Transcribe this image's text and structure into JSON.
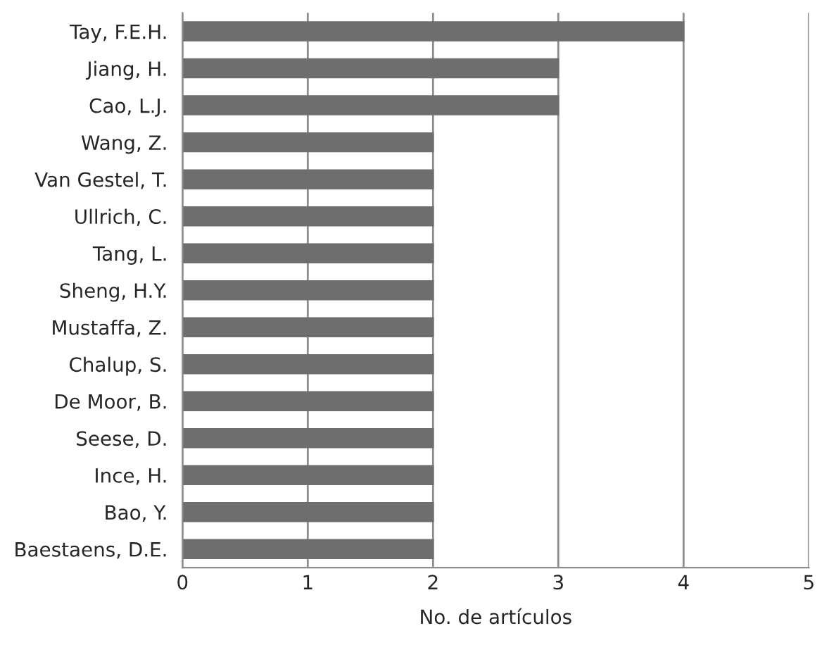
{
  "chart_data": {
    "type": "bar",
    "orientation": "horizontal",
    "xlabel": "No. de artículos",
    "categories": [
      "Tay, F.E.H.",
      "Jiang, H.",
      "Cao, L.J.",
      "Wang, Z.",
      "Van Gestel, T.",
      "Ullrich, C.",
      "Tang, L.",
      "Sheng, H.Y.",
      "Mustaffa, Z.",
      "Chalup, S.",
      "De Moor, B.",
      "Seese, D.",
      "Ince, H.",
      "Bao, Y.",
      "Baestaens, D.E."
    ],
    "values": [
      4,
      3,
      3,
      2,
      2,
      2,
      2,
      2,
      2,
      2,
      2,
      2,
      2,
      2,
      2
    ],
    "color": "#6e6e6e",
    "xlim": [
      0,
      5
    ],
    "xticks": [
      0,
      1,
      2,
      3,
      4,
      5
    ],
    "grid": "x"
  }
}
